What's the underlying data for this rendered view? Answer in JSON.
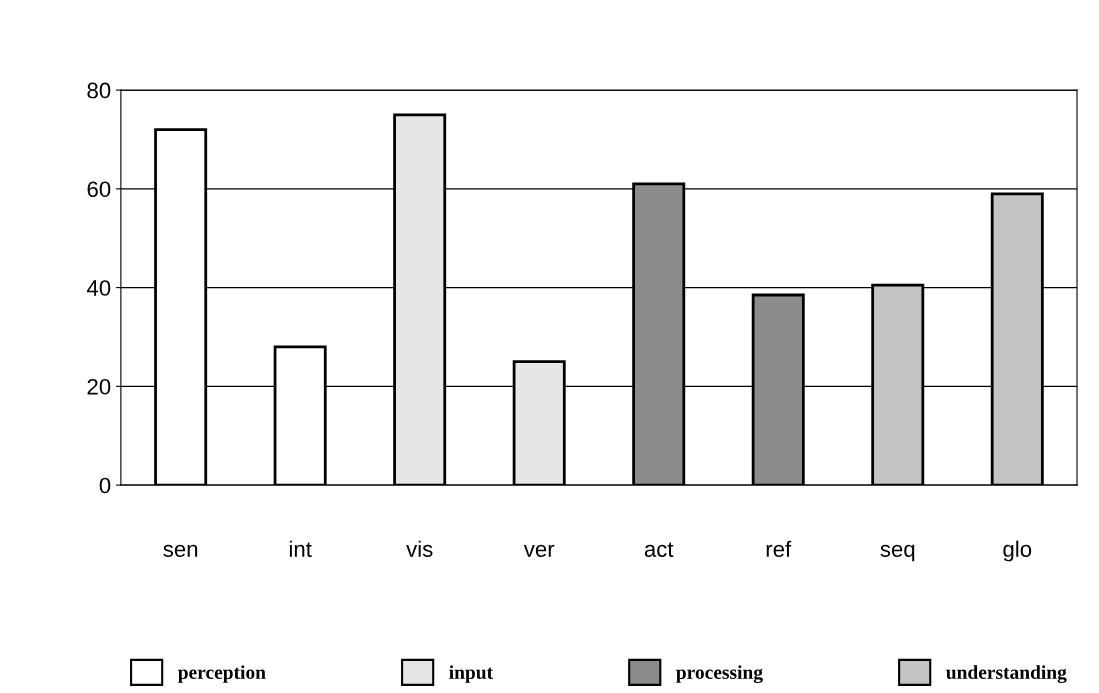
{
  "chart_data": {
    "type": "bar",
    "categories": [
      "sen",
      "int",
      "vis",
      "ver",
      "act",
      "ref",
      "seq",
      "glo"
    ],
    "series": [
      {
        "name": "perception",
        "color": "#ffffff",
        "values": [
          72,
          28,
          null,
          null,
          null,
          null,
          null,
          null
        ]
      },
      {
        "name": "input",
        "color": "#e6e6e6",
        "values": [
          null,
          null,
          75,
          25,
          null,
          null,
          null,
          null
        ]
      },
      {
        "name": "processing",
        "color": "#8c8c8c",
        "values": [
          null,
          null,
          null,
          null,
          61,
          38.5,
          null,
          null
        ]
      },
      {
        "name": "understanding",
        "color": "#c4c4c4",
        "values": [
          null,
          null,
          null,
          null,
          null,
          null,
          40.5,
          59
        ]
      }
    ],
    "ylim": [
      0,
      80
    ],
    "yticks": [
      0,
      20,
      40,
      60,
      80
    ],
    "grid": "y",
    "legend": "bottom"
  }
}
